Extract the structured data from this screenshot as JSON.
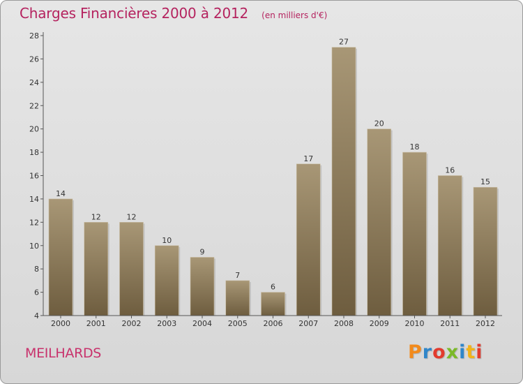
{
  "header": {
    "title": "Charges Financières 2000 à 2012",
    "unit": "(en milliers d'€)"
  },
  "footer": {
    "commune": "MEILHARDS",
    "logo_text": "Proxiti",
    "logo_colors": [
      "#f28a1c",
      "#2f86c9",
      "#e23b2e",
      "#7bb928",
      "#2f86c9",
      "#f2b318",
      "#e23b2e"
    ]
  },
  "colors": {
    "title": "#b5235f",
    "bar_top": "#a89776",
    "bar_bottom": "#6e5d3f",
    "axis": "#555555",
    "text": "#333333"
  },
  "chart_data": {
    "type": "bar",
    "title": "Charges Financières 2000 à 2012",
    "subtitle": "(en milliers d'€)",
    "categories": [
      "2000",
      "2001",
      "2002",
      "2003",
      "2004",
      "2005",
      "2006",
      "2007",
      "2008",
      "2009",
      "2010",
      "2011",
      "2012"
    ],
    "values": [
      14,
      12,
      12,
      10,
      9,
      7,
      6,
      17,
      27,
      20,
      18,
      16,
      15
    ],
    "yticks": [
      4,
      6,
      8,
      10,
      12,
      14,
      16,
      18,
      20,
      22,
      24,
      26,
      28
    ],
    "ylim": [
      4,
      28
    ],
    "grid": false,
    "legend": "none"
  }
}
